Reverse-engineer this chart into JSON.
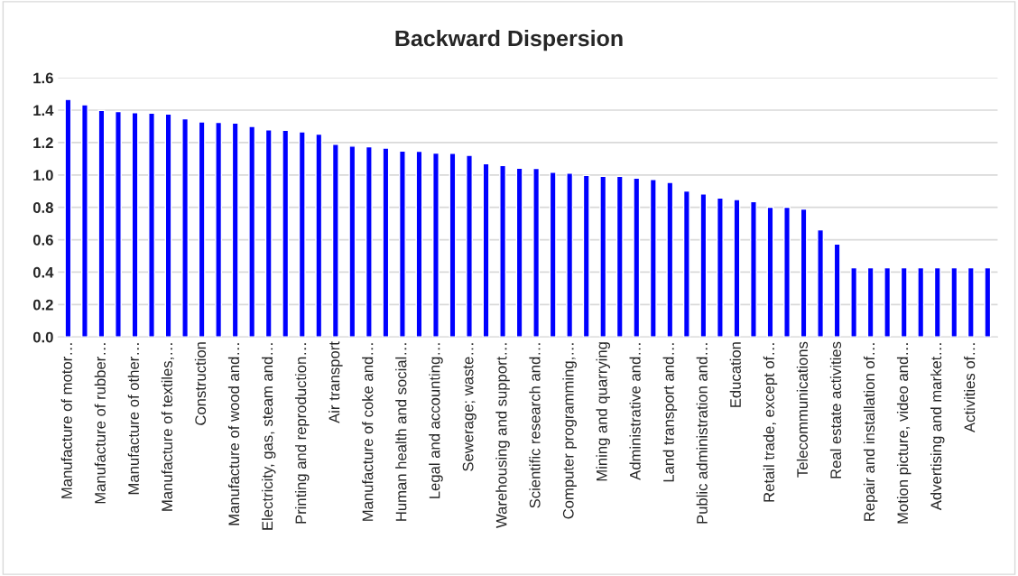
{
  "chart_data": {
    "type": "bar",
    "title": "Backward Dispersion",
    "categories": [
      "Manufacture of motor…",
      null,
      "Manufacture of rubber…",
      null,
      "Manufacture of other…",
      null,
      "Manufacture of textiles,…",
      null,
      "Construction",
      null,
      "Manufacture of wood and…",
      null,
      "Electricity, gas, steam and…",
      null,
      "Printing and reproduction…",
      null,
      "Air transport",
      null,
      "Manufacture of coke and…",
      null,
      "Human health and social…",
      null,
      "Legal and accounting…",
      null,
      "Sewerage; waste…",
      null,
      "Warehousing and support…",
      null,
      "Scientific research and…",
      null,
      "Computer programming,…",
      null,
      "Mining and quarrying",
      null,
      "Administrative and…",
      null,
      "Land transport and…",
      null,
      "Public administration and…",
      null,
      "Education",
      null,
      "Retail trade, except of…",
      null,
      "Telecommunications",
      null,
      "Real estate activities",
      null,
      "Repair and installation of…",
      null,
      "Motion picture, video and…",
      null,
      "Advertising and market…",
      null,
      "Activities of…",
      null
    ],
    "values": [
      1.466,
      1.433,
      1.398,
      1.392,
      1.384,
      1.382,
      1.376,
      1.347,
      1.327,
      1.325,
      1.321,
      1.3,
      1.278,
      1.276,
      1.266,
      1.252,
      1.19,
      1.178,
      1.174,
      1.166,
      1.148,
      1.146,
      1.135,
      1.133,
      1.121,
      1.07,
      1.058,
      1.042,
      1.04,
      1.017,
      1.011,
      0.997,
      0.991,
      0.991,
      0.98,
      0.972,
      0.954,
      0.901,
      0.883,
      0.858,
      0.848,
      0.836,
      0.801,
      0.801,
      0.789,
      0.662,
      0.573,
      0.428,
      0.428,
      0.428,
      0.428,
      0.428,
      0.428,
      0.428,
      0.428,
      0.428
    ],
    "color": "#0000ff",
    "ylim": [
      0,
      1.6
    ],
    "yticks": [
      {
        "value": 0,
        "label": "0.0"
      },
      {
        "value": 0.2,
        "label": "0.2"
      },
      {
        "value": 0.4,
        "label": "0.4"
      },
      {
        "value": 0.6,
        "label": "0.6"
      },
      {
        "value": 0.8,
        "label": "0.8"
      },
      {
        "value": 1.0,
        "label": "1.0"
      },
      {
        "value": 1.2,
        "label": "1.2"
      },
      {
        "value": 1.4,
        "label": "1.4"
      },
      {
        "value": 1.6,
        "label": "1.6"
      }
    ],
    "grid": "y"
  }
}
